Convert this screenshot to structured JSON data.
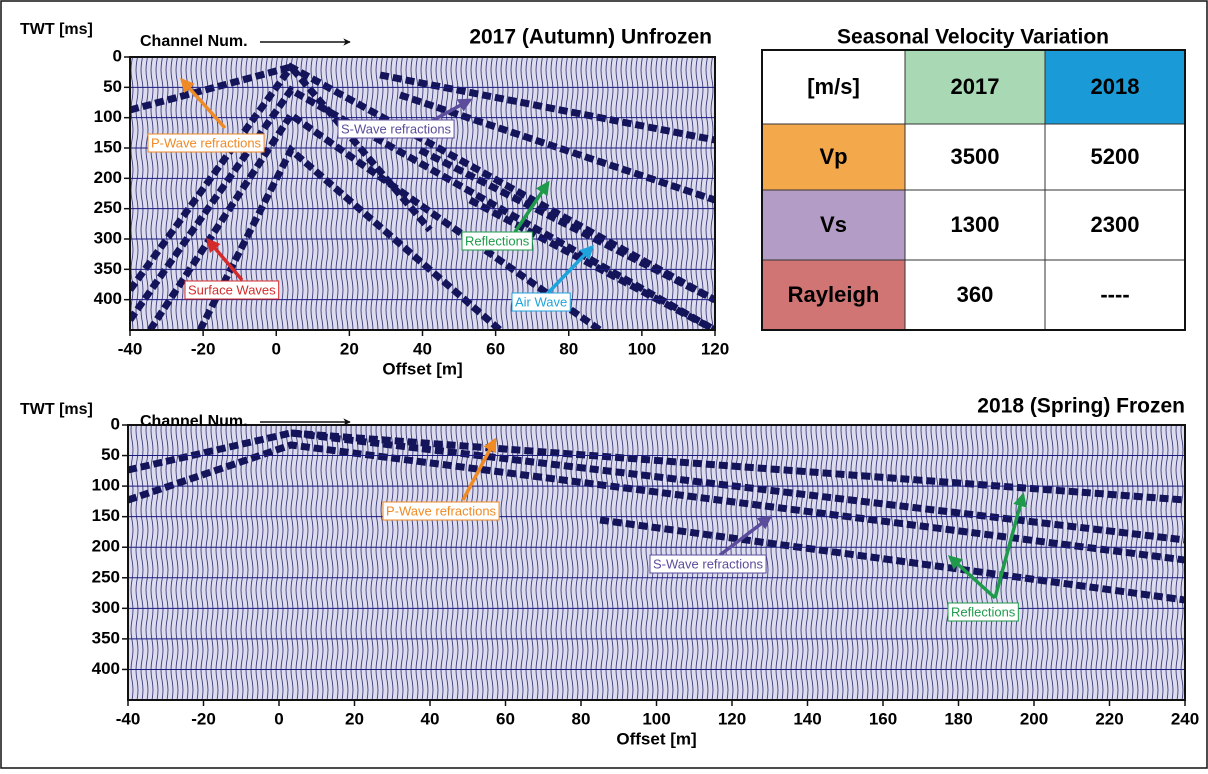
{
  "panels": [
    {
      "title": "2017 (Autumn) Unfrozen",
      "y_label": "TWT [ms]",
      "x_label": "Offset [m]",
      "channel_label": "Channel Num.",
      "xlim": [
        -40,
        120
      ],
      "xticks": [
        -40,
        -20,
        0,
        20,
        40,
        60,
        80,
        100,
        120
      ],
      "ylim": [
        0,
        450
      ],
      "yticks": [
        0,
        50,
        100,
        150,
        200,
        250,
        300,
        350,
        400
      ],
      "annotations": [
        {
          "text": "P-Wave refractions",
          "color": "#f08a24"
        },
        {
          "text": "S-Wave refractions",
          "color": "#5b4c9c"
        },
        {
          "text": "Reflections",
          "color": "#1e9a4a"
        },
        {
          "text": "Surface Waves",
          "color": "#d42a2a"
        },
        {
          "text": "Air Wave",
          "color": "#1fa3dc"
        }
      ]
    },
    {
      "title": "2018 (Spring) Frozen",
      "y_label": "TWT [ms]",
      "x_label": "Offset [m]",
      "channel_label": "Channel Num.",
      "xlim": [
        -40,
        240
      ],
      "xticks": [
        -40,
        -20,
        0,
        20,
        40,
        60,
        80,
        100,
        120,
        140,
        160,
        180,
        200,
        220,
        240
      ],
      "ylim": [
        0,
        450
      ],
      "yticks": [
        0,
        50,
        100,
        150,
        200,
        250,
        300,
        350,
        400
      ],
      "annotations": [
        {
          "text": "P-Wave refractions",
          "color": "#f08a24"
        },
        {
          "text": "S-Wave refractions",
          "color": "#5b4c9c"
        },
        {
          "text": "Reflections",
          "color": "#1e9a4a"
        }
      ]
    }
  ],
  "table": {
    "title": "Seasonal Velocity Variation",
    "header": [
      "[m/s]",
      "2017",
      "2018"
    ],
    "rows": [
      [
        "Vp",
        "3500",
        "5200"
      ],
      [
        "Vs",
        "1300",
        "2300"
      ],
      [
        "Rayleigh",
        "360",
        "----"
      ]
    ]
  }
}
